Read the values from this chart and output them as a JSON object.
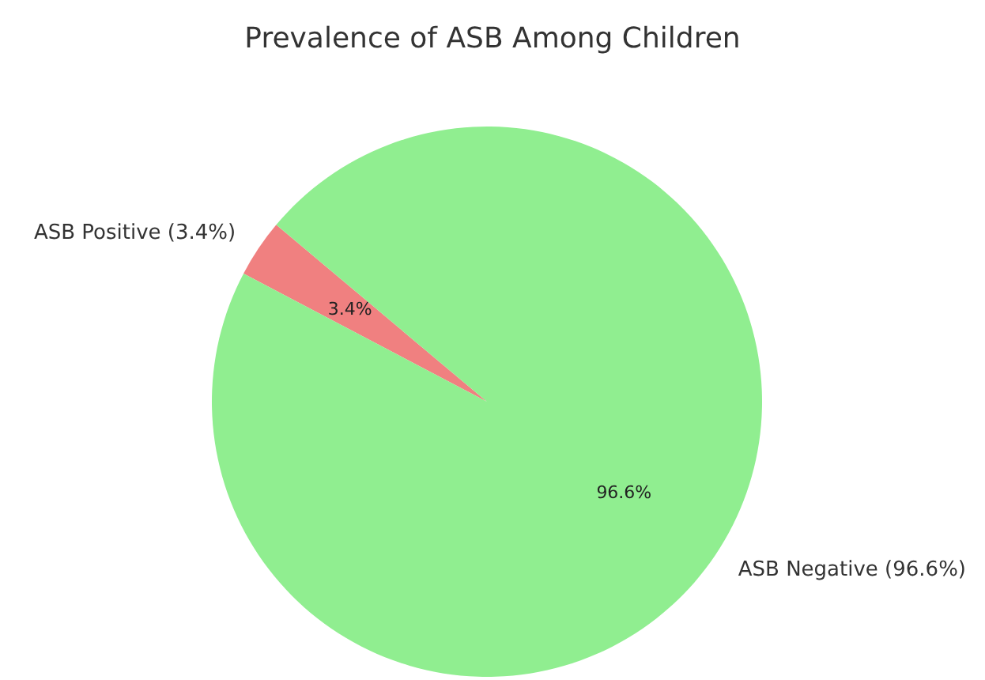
{
  "chart_data": {
    "type": "pie",
    "title": "Prevalence of ASB Among Children",
    "categories": [
      "ASB Positive (3.4%)",
      "ASB Negative (96.6%)"
    ],
    "values": [
      3.4,
      96.6
    ],
    "colors": [
      "#f08080",
      "#90ee90"
    ],
    "value_labels": [
      "3.4%",
      "96.6%"
    ]
  }
}
